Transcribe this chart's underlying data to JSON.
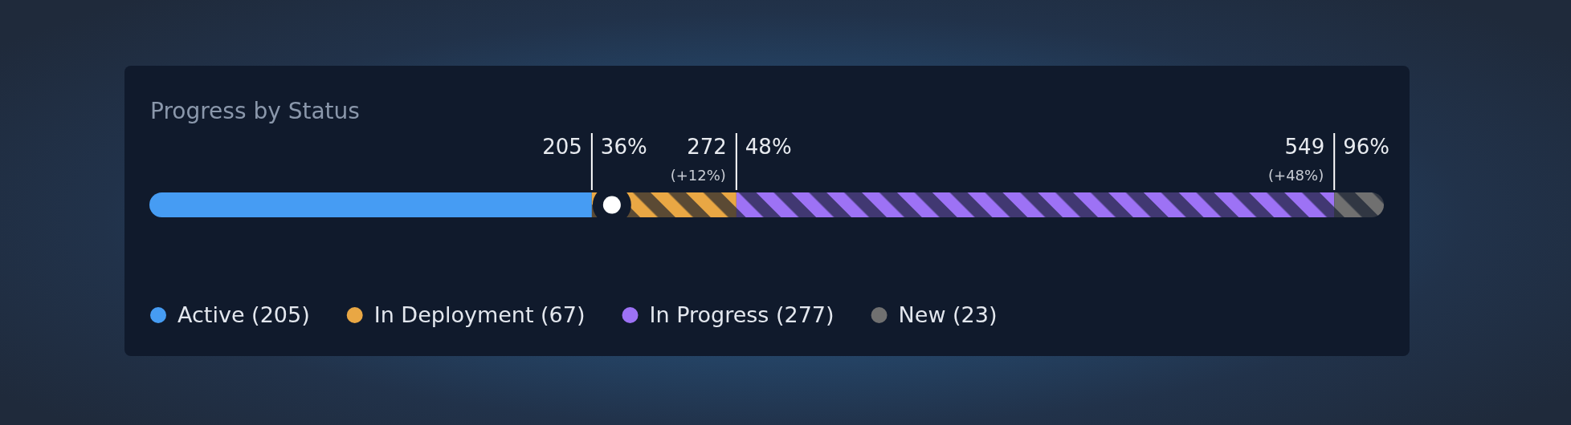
{
  "chart_data": {
    "type": "bar",
    "title": "Progress by Status",
    "orientation": "horizontal",
    "stacked": true,
    "categories": [
      null
    ],
    "series": [
      {
        "name": "Active (205)",
        "color": "#469cf3",
        "values": [
          35.84
        ]
      },
      {
        "name": "In Deployment (67)",
        "color": "#e9a744",
        "values": [
          11.71
        ]
      },
      {
        "name": "In Progress (277)",
        "color": "#9d72f5",
        "values": [
          48.43
        ]
      },
      {
        "name": "New (23)",
        "color": "#707070",
        "values": [
          4.02
        ]
      }
    ],
    "xlim": [
      0,
      100
    ],
    "ref_lines": [
      {
        "axis": "x",
        "value": 35.84,
        "label": "36%"
      },
      {
        "axis": "x",
        "value": 47.55,
        "label": "48%"
      },
      {
        "axis": "x",
        "value": 95.98,
        "label": "96%"
      }
    ],
    "annotations": [
      {
        "text": "205",
        "x": 35.84
      },
      {
        "text": "272",
        "x": 47.55
      },
      {
        "text": "(+12%)",
        "x": 47.55
      },
      {
        "text": "549",
        "x": 95.98
      },
      {
        "text": "(+48%)",
        "x": 95.98
      }
    ],
    "legend": "bottom"
  }
}
